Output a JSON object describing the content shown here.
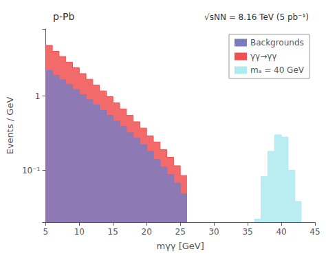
{
  "chart_data": {
    "type": "histogram",
    "title_left": "p-Pb",
    "title_right": "√sNN = 8.16 TeV (5 pb⁻¹)",
    "xlabel": "mγγ [GeV]",
    "ylabel": "Events / GeV",
    "log": "y",
    "grid": false,
    "legend": "upper right",
    "xlim": [
      5,
      45
    ],
    "xticks": [
      5,
      10,
      15,
      20,
      25,
      30,
      35,
      40,
      45
    ],
    "ylim": [
      0.02,
      8
    ],
    "yticks": [
      {
        "value": 0.1,
        "label": "10⁻¹"
      },
      1
    ],
    "series": [
      {
        "name": "Backgrounds",
        "color": "#7b7bbf",
        "bins": [
          5,
          6,
          7,
          8,
          9,
          10,
          11,
          12,
          13,
          14,
          15,
          16,
          17,
          18,
          19,
          20,
          21,
          22,
          23,
          24,
          25,
          26
        ],
        "values": [
          2.2,
          1.9,
          1.65,
          1.42,
          1.22,
          1.04,
          0.89,
          0.76,
          0.64,
          0.55,
          0.46,
          0.39,
          0.32,
          0.27,
          0.22,
          0.18,
          0.14,
          0.11,
          0.088,
          0.067,
          0.048
        ]
      },
      {
        "name": "γγ→γγ",
        "color": "#f05050",
        "bins": [
          5,
          6,
          7,
          8,
          9,
          10,
          11,
          12,
          13,
          14,
          15,
          16,
          17,
          18,
          19,
          20,
          21,
          22,
          23,
          24,
          25,
          26
        ],
        "values": [
          4.8,
          4.0,
          3.4,
          2.85,
          2.4,
          2.0,
          1.68,
          1.4,
          1.17,
          0.98,
          0.81,
          0.67,
          0.55,
          0.45,
          0.37,
          0.29,
          0.24,
          0.19,
          0.15,
          0.115,
          0.085
        ]
      },
      {
        "name": "mₐ = 40 GeV",
        "color": "#aeeaf0",
        "bins": [
          36,
          37,
          38,
          39,
          40,
          41,
          42,
          43
        ],
        "values": [
          0.022,
          0.082,
          0.18,
          0.3,
          0.28,
          0.1,
          0.038
        ]
      }
    ]
  }
}
